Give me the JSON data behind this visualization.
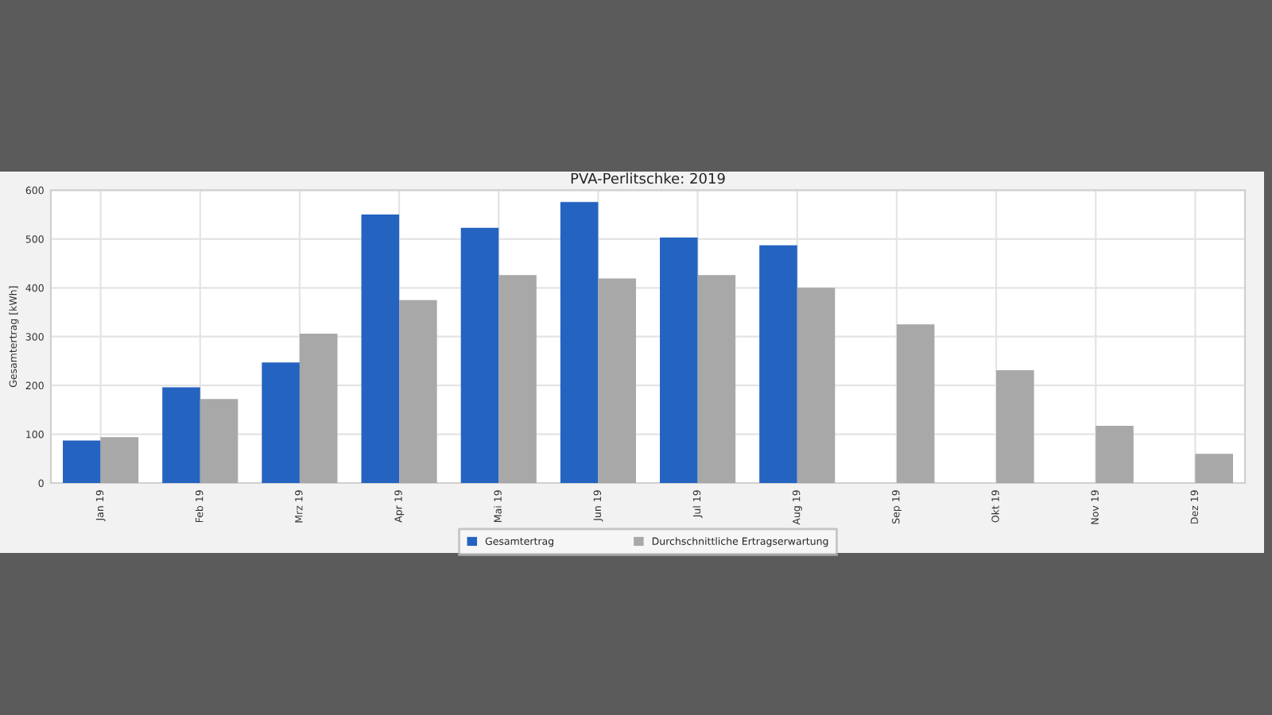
{
  "chart_data": {
    "type": "bar",
    "title": "PVA-Perlitschke: 2019",
    "ylabel": "Gesamtertrag [kWh]",
    "categories": [
      "Jan 19",
      "Feb 19",
      "Mrz 19",
      "Apr 19",
      "Mai 19",
      "Jun 19",
      "Jul 19",
      "Aug 19",
      "Sep 19",
      "Okt 19",
      "Nov 19",
      "Dez 19"
    ],
    "series": [
      {
        "name": "Gesamtertrag",
        "color": "#2563c0",
        "values": [
          87,
          196,
          247,
          550,
          523,
          576,
          503,
          487,
          null,
          null,
          null,
          null
        ]
      },
      {
        "name": "Durchschnittliche Ertragserwartung",
        "color": "#a8a8a8",
        "values": [
          94,
          172,
          306,
          375,
          426,
          419,
          426,
          400,
          325,
          231,
          117,
          60
        ]
      }
    ],
    "ylim": [
      0,
      600
    ],
    "yticks": [
      0,
      100,
      200,
      300,
      400,
      500,
      600
    ],
    "grid": true,
    "legend": "bottom"
  }
}
